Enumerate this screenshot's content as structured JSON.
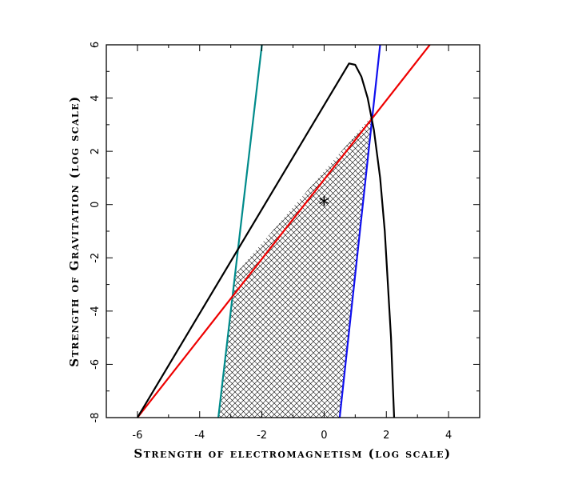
{
  "chart_data": {
    "type": "line",
    "xlabel": "Strength of electromagnetism (log scale)",
    "ylabel": "Strength of Gravitation (log scale)",
    "xlim": [
      -7,
      5
    ],
    "ylim": [
      -8,
      6
    ],
    "x_ticks": [
      -6,
      -4,
      -2,
      0,
      2,
      4
    ],
    "y_ticks": [
      -8,
      -6,
      -4,
      -2,
      0,
      2,
      4,
      6
    ],
    "x_tick_labels": [
      "-6",
      "-4",
      "-2",
      "0",
      "2",
      "4"
    ],
    "y_tick_labels": [
      "-8",
      "-6",
      "-4",
      "-2",
      "0",
      "2",
      "4",
      "6"
    ],
    "grid": false,
    "series": [
      {
        "color": "#008b8b",
        "points": [
          [
            -3.4,
            -8
          ],
          [
            -2.0,
            6
          ]
        ]
      },
      {
        "color": "#1010ee",
        "points": [
          [
            0.5,
            -8
          ],
          [
            1.8,
            6
          ]
        ]
      },
      {
        "color": "#ee0000",
        "points": [
          [
            -6.0,
            -8
          ],
          [
            3.4,
            6
          ]
        ]
      },
      {
        "color": "#000000",
        "points": [
          [
            -6.0,
            -8
          ],
          [
            0.8,
            5.3
          ],
          [
            1.0,
            5.25
          ],
          [
            1.2,
            4.8
          ],
          [
            1.4,
            4.0
          ],
          [
            1.6,
            2.8
          ],
          [
            1.8,
            1.0
          ],
          [
            1.95,
            -1.0
          ],
          [
            2.05,
            -3.0
          ],
          [
            2.15,
            -5.0
          ],
          [
            2.2,
            -6.5
          ],
          [
            2.25,
            -8
          ]
        ]
      }
    ],
    "shaded_region": {
      "pattern": "crosshatch",
      "vertices": [
        [
          -2.85,
          -2.6
        ],
        [
          1.55,
          3.35
        ],
        [
          0.5,
          -8
        ],
        [
          -3.4,
          -8
        ]
      ]
    },
    "markers": [
      {
        "symbol": "*",
        "x": 0,
        "y": 0
      }
    ]
  }
}
